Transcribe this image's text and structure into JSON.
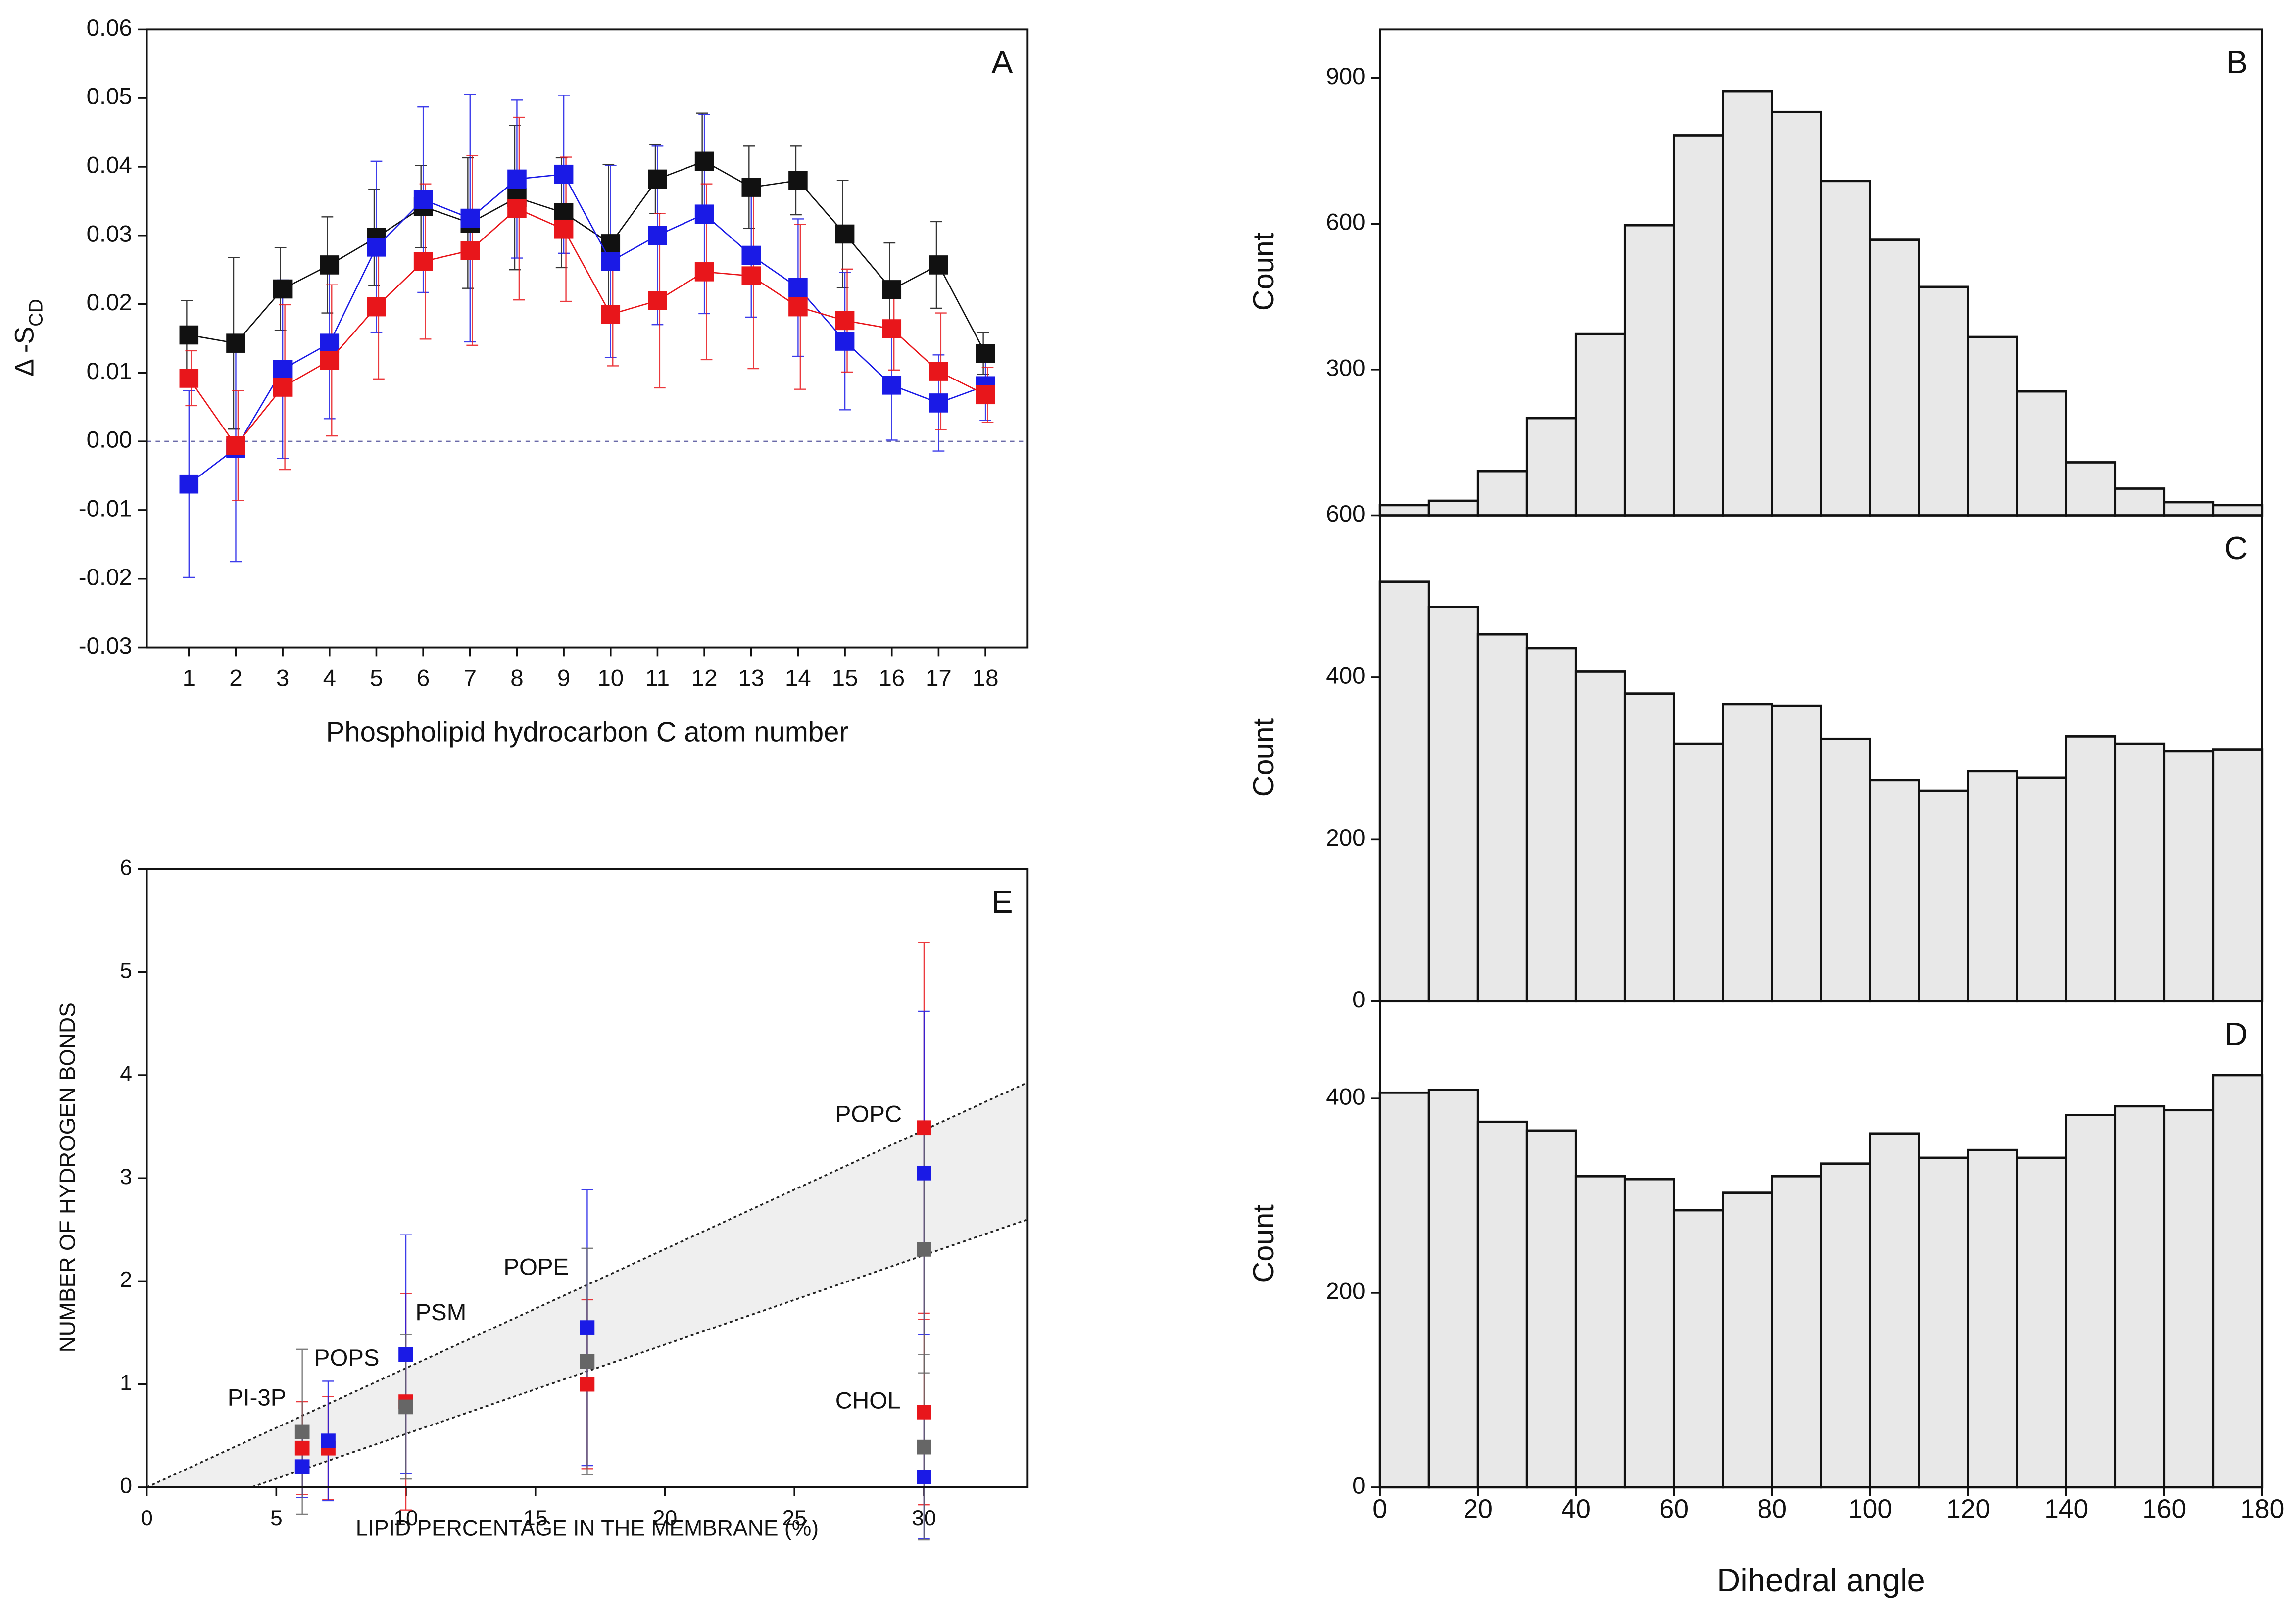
{
  "chart_data": [
    {
      "type": "line",
      "panel_label": "A",
      "xlabel": "Phospholipid hydrocarbon C atom number",
      "ylabel": "Δ -S",
      "ylabel_sub": "CD",
      "x": [
        1,
        2,
        3,
        4,
        5,
        6,
        7,
        8,
        9,
        10,
        11,
        12,
        13,
        14,
        15,
        16,
        17,
        18
      ],
      "xlim": [
        0.1,
        18.9
      ],
      "xticks": [
        1,
        2,
        3,
        4,
        5,
        6,
        7,
        8,
        9,
        10,
        11,
        12,
        13,
        14,
        15,
        16,
        17,
        18
      ],
      "ylim": [
        -0.03,
        0.06
      ],
      "yticks": [
        -0.03,
        -0.02,
        -0.01,
        {
          "value": 0,
          "label": "0.00"
        },
        0.01,
        0.02,
        0.03,
        0.04,
        0.05,
        0.06
      ],
      "series": [
        {
          "color": "#111111",
          "values": [
            0.0155,
            0.0143,
            0.0222,
            0.0257,
            0.0297,
            0.0342,
            0.0318,
            0.0355,
            0.0333,
            0.0288,
            0.0382,
            0.0408,
            0.037,
            0.038,
            0.0302,
            0.0221,
            0.0257,
            0.0128
          ],
          "errors": [
            0.005,
            0.0125,
            0.006,
            0.007,
            0.007,
            0.006,
            0.0095,
            0.0105,
            0.008,
            0.0115,
            0.005,
            0.007,
            0.006,
            0.005,
            0.0078,
            0.0068,
            0.0063,
            0.003
          ]
        },
        {
          "color": "#1a1ae6",
          "values": [
            -0.0062,
            -0.001,
            0.0105,
            0.0143,
            0.0283,
            0.0352,
            0.0325,
            0.0382,
            0.0389,
            0.0262,
            0.03,
            0.0331,
            0.0271,
            0.0224,
            0.0146,
            0.0082,
            0.0056,
            0.0081
          ],
          "errors": [
            0.0136,
            0.0165,
            0.013,
            0.011,
            0.0125,
            0.0135,
            0.018,
            0.0115,
            0.0115,
            0.014,
            0.013,
            0.0145,
            0.009,
            0.01,
            0.01,
            0.008,
            0.007,
            0.005
          ]
        },
        {
          "color": "#e8161b",
          "values": [
            0.0092,
            -0.0006,
            0.0079,
            0.0118,
            0.0196,
            0.0262,
            0.0278,
            0.0339,
            0.0309,
            0.0185,
            0.0205,
            0.0247,
            0.0241,
            0.0196,
            0.0176,
            0.0164,
            0.0102,
            0.0068
          ],
          "errors": [
            0.004,
            0.008,
            0.012,
            0.011,
            0.0105,
            0.0113,
            0.0138,
            0.0133,
            0.0105,
            0.0075,
            0.0127,
            0.0128,
            0.0135,
            0.012,
            0.0075,
            0.006,
            0.0085,
            0.004
          ]
        }
      ]
    },
    {
      "type": "histogram",
      "panel_label": "B",
      "ylabel": "Count",
      "bins": [
        0,
        10,
        20,
        30,
        40,
        50,
        60,
        70,
        80,
        90,
        100,
        110,
        120,
        130,
        140,
        150,
        160,
        170,
        180
      ],
      "counts": [
        21,
        30,
        91,
        200,
        373,
        597,
        782,
        873,
        830,
        688,
        567,
        470,
        367,
        255,
        109,
        55,
        27,
        21
      ],
      "xlim": [
        0,
        180
      ],
      "ylim": [
        0,
        1000
      ],
      "yticks": [
        300,
        600,
        900
      ]
    },
    {
      "type": "histogram",
      "panel_label": "C",
      "ylabel": "Count",
      "bins": [
        0,
        10,
        20,
        30,
        40,
        50,
        60,
        70,
        80,
        90,
        100,
        110,
        120,
        130,
        140,
        150,
        160,
        170,
        180
      ],
      "counts": [
        518,
        487,
        453,
        436,
        407,
        380,
        318,
        367,
        365,
        324,
        273,
        260,
        284,
        276,
        327,
        318,
        309,
        311
      ],
      "xlim": [
        0,
        180
      ],
      "ylim": [
        0,
        600
      ],
      "yticks": [
        0,
        200,
        400,
        600
      ]
    },
    {
      "type": "histogram",
      "panel_label": "D",
      "ylabel": "Count",
      "xlabel": "Dihedral angle",
      "bins": [
        0,
        10,
        20,
        30,
        40,
        50,
        60,
        70,
        80,
        90,
        100,
        110,
        120,
        130,
        140,
        150,
        160,
        170,
        180
      ],
      "counts": [
        406,
        409,
        376,
        367,
        320,
        317,
        285,
        303,
        320,
        333,
        364,
        339,
        347,
        339,
        383,
        392,
        388,
        424
      ],
      "xlim": [
        0,
        180
      ],
      "xticks": [
        0,
        20,
        40,
        60,
        80,
        100,
        120,
        140,
        160,
        180
      ],
      "ylim": [
        0,
        500
      ],
      "yticks": [
        0,
        200,
        400
      ]
    },
    {
      "type": "scatter",
      "panel_label": "E",
      "xlabel": "LIPID PERCENTAGE IN THE MEMBRANE (%)",
      "ylabel": "NUMBER OF HYDROGEN BONDS",
      "xlim": [
        0,
        34
      ],
      "xticks": [
        0,
        5,
        10,
        15,
        20,
        25,
        30
      ],
      "ylim": [
        0,
        6
      ],
      "yticks": [
        0,
        1,
        2,
        3,
        4,
        5,
        6
      ],
      "band": {
        "x": [
          0,
          34
        ],
        "upper": [
          0,
          3.93
        ],
        "lower": [
          -0.35,
          2.6
        ]
      },
      "annotations": [
        "PI-3P",
        "POPS",
        "PSM",
        "POPE",
        "POPC",
        "CHOL"
      ],
      "series": [
        {
          "color": "#e8161b",
          "x": [
            6,
            7,
            10,
            17,
            30,
            30
          ],
          "values": [
            0.38,
            0.38,
            0.83,
            1.0,
            3.49,
            0.73
          ],
          "errors": [
            0.45,
            0.5,
            1.05,
            0.82,
            1.8,
            0.9
          ]
        },
        {
          "color": "#1a1ae6",
          "x": [
            6,
            7,
            10,
            17,
            30,
            30
          ],
          "values": [
            0.2,
            0.45,
            1.29,
            1.55,
            3.05,
            0.1
          ],
          "errors": [
            0.3,
            0.58,
            1.16,
            1.34,
            1.57,
            0.6
          ]
        },
        {
          "color": "#666666",
          "x": [
            6,
            10,
            17,
            30,
            30
          ],
          "values": [
            0.54,
            0.78,
            1.22,
            2.31,
            0.39
          ],
          "errors": [
            0.8,
            0.7,
            1.1,
            1.2,
            0.9
          ]
        }
      ]
    }
  ]
}
